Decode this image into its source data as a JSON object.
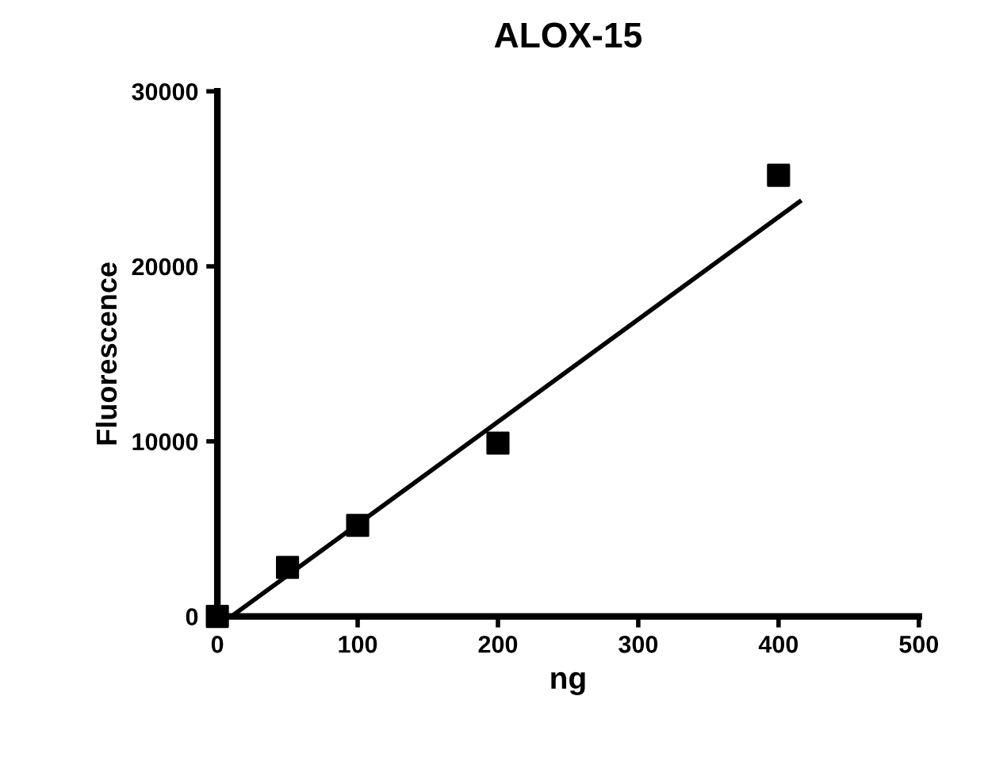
{
  "chart_data": {
    "type": "scatter",
    "title": "ALOX-15",
    "xlabel": "ng",
    "ylabel": "Fluorescence",
    "xlim": [
      0,
      500
    ],
    "xticks": [
      0,
      100,
      200,
      300,
      400,
      500
    ],
    "ylim": [
      0,
      30000
    ],
    "yticks": [
      0,
      10000,
      20000,
      30000
    ],
    "grid": false,
    "legend": false,
    "marker": "square",
    "series": [
      {
        "color": "#000000",
        "x": [
          0,
          50,
          100,
          200,
          400
        ],
        "values": [
          0,
          2800,
          5200,
          9900,
          25200
        ]
      },
      {
        "type": "line",
        "color": "#000000",
        "x": [
          10,
          415
        ],
        "values": [
          0,
          23700
        ],
        "marker": "none",
        "line_style": "solid"
      }
    ]
  }
}
